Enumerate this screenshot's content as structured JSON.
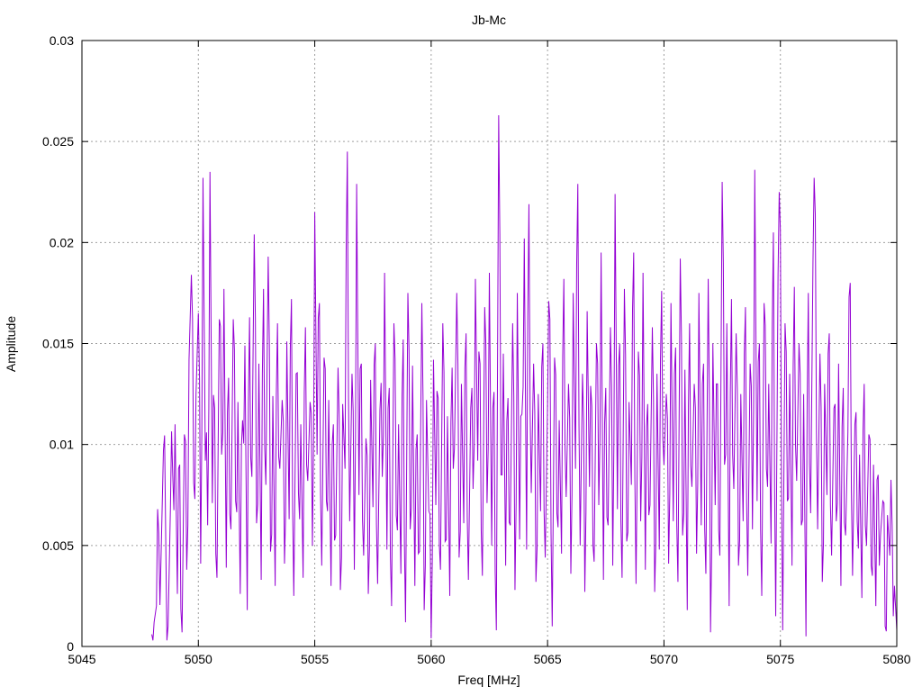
{
  "chart_data": {
    "type": "line",
    "title": "Jb-Mc",
    "xlabel": "Freq [MHz]",
    "ylabel": "Amplitude",
    "xlim": [
      5045,
      5080
    ],
    "ylim": [
      0,
      0.03
    ],
    "grid": true,
    "line_color": "#9400d3",
    "x_ticks": [
      "5045",
      "5050",
      "5055",
      "5060",
      "5065",
      "5070",
      "5075",
      "5080"
    ],
    "y_ticks": [
      "0",
      "0.005",
      "0.01",
      "0.015",
      "0.02",
      "0.025",
      "0.03"
    ],
    "x_start": 5048.0,
    "x_step": 0.1,
    "values": [
      0.0006,
      0.0012,
      0.002,
      0.0056,
      0.0045,
      0.0097,
      0.0052,
      0.001,
      0.0068,
      0.0085,
      0.011,
      0.0026,
      0.009,
      0.0007,
      0.0105,
      0.0038,
      0.0142,
      0.0184,
      0.0081,
      0.0125,
      0.0165,
      0.0041,
      0.0232,
      0.0092,
      0.006,
      0.0235,
      0.0071,
      0.0118,
      0.0034,
      0.0162,
      0.0095,
      0.0177,
      0.0039,
      0.0133,
      0.0058,
      0.0162,
      0.0072,
      0.0121,
      0.0026,
      0.0112,
      0.0149,
      0.0018,
      0.0163,
      0.0084,
      0.0204,
      0.0061,
      0.014,
      0.0033,
      0.0177,
      0.008,
      0.0193,
      0.0047,
      0.0124,
      0.003,
      0.016,
      0.0088,
      0.0122,
      0.0041,
      0.0151,
      0.0063,
      0.0172,
      0.0025,
      0.0135,
      0.0076,
      0.011,
      0.0034,
      0.0158,
      0.0082,
      0.0121,
      0.005,
      0.0215,
      0.0095,
      0.017,
      0.004,
      0.0143,
      0.0072,
      0.0122,
      0.003,
      0.011,
      0.0055,
      0.0138,
      0.0028,
      0.012,
      0.0088,
      0.0245,
      0.0062,
      0.0135,
      0.0038,
      0.0229,
      0.0075,
      0.014,
      0.0045,
      0.0103,
      0.0026,
      0.0132,
      0.0069,
      0.015,
      0.0031,
      0.0117,
      0.0084,
      0.0185,
      0.0048,
      0.0128,
      0.002,
      0.016,
      0.0065,
      0.011,
      0.0036,
      0.0152,
      0.0012,
      0.0175,
      0.0058,
      0.0139,
      0.003,
      0.0105,
      0.0047,
      0.017,
      0.0018,
      0.0122,
      0.0067,
      0.0004,
      0.0142,
      0.007,
      0.0123,
      0.0038,
      0.016,
      0.0052,
      0.0114,
      0.0025,
      0.0138,
      0.0098,
      0.0175,
      0.0044,
      0.013,
      0.0061,
      0.0155,
      0.0033,
      0.0118,
      0.0078,
      0.0182,
      0.0092,
      0.014,
      0.0035,
      0.0168,
      0.0071,
      0.0185,
      0.005,
      0.0126,
      0.0008,
      0.0263,
      0.0085,
      0.0145,
      0.004,
      0.0123,
      0.006,
      0.016,
      0.0028,
      0.0175,
      0.0053,
      0.0115,
      0.0202,
      0.0048,
      0.0219,
      0.0076,
      0.014,
      0.0032,
      0.0125,
      0.0067,
      0.015,
      0.0044,
      0.012,
      0.0162,
      0.001,
      0.0143,
      0.0066,
      0.0112,
      0.0046,
      0.0182,
      0.0074,
      0.013,
      0.0036,
      0.0175,
      0.0088,
      0.0229,
      0.005,
      0.0135,
      0.0027,
      0.0166,
      0.0079,
      0.0119,
      0.0042,
      0.015,
      0.007,
      0.0195,
      0.0033,
      0.0128,
      0.006,
      0.0158,
      0.004,
      0.0224,
      0.0068,
      0.015,
      0.0034,
      0.0177,
      0.0052,
      0.0121,
      0.008,
      0.0195,
      0.0031,
      0.0146,
      0.0062,
      0.0185,
      0.0038,
      0.012,
      0.007,
      0.0158,
      0.0027,
      0.0135,
      0.0048,
      0.0176,
      0.009,
      0.0125,
      0.0041,
      0.017,
      0.0062,
      0.0148,
      0.0032,
      0.0192,
      0.0055,
      0.0137,
      0.0018,
      0.016,
      0.0079,
      0.013,
      0.0046,
      0.0175,
      0.006,
      0.014,
      0.0036,
      0.0182,
      0.0007,
      0.015,
      0.007,
      0.013,
      0.0045,
      0.023,
      0.009,
      0.016,
      0.002,
      0.0172,
      0.0078,
      0.0155,
      0.004,
      0.0125,
      0.0062,
      0.0168,
      0.0035,
      0.014,
      0.0058,
      0.0236,
      0.0072,
      0.015,
      0.0025,
      0.017,
      0.0088,
      0.013,
      0.0051,
      0.0205,
      0.0015,
      0.0184,
      0.0206,
      0.0008,
      0.016,
      0.0072,
      0.0135,
      0.004,
      0.0178,
      0.0082,
      0.015,
      0.006,
      0.0125,
      0.0005,
      0.0175,
      0.0066,
      0.019,
      0.0214,
      0.0058,
      0.0145,
      0.0032,
      0.013,
      0.0075,
      0.0155,
      0.0045,
      0.0118,
      0.0062,
      0.014,
      0.003,
      0.0128,
      0.0055,
      0.0106,
      0.018,
      0.0035,
      0.011,
      0.0062,
      0.0095,
      0.0024,
      0.013,
      0.005,
      0.0105,
      0.004,
      0.009,
      0.002,
      0.0085,
      0.0055,
      0.0072,
      0.001,
      0.0065,
      0.0045,
      0.006,
      0.003,
      0.0008
    ]
  }
}
